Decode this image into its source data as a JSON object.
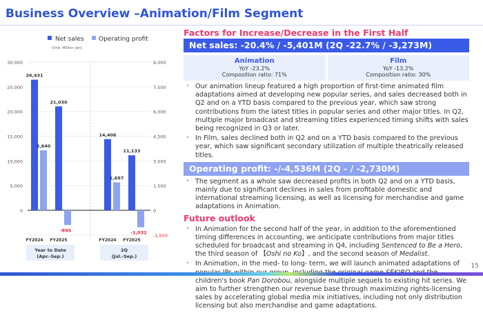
{
  "title": "Business Overview –Animation/Film Segment",
  "page_number": "15",
  "chart_data": {
    "type": "bar",
    "legend": [
      "Net sales",
      "Operating profit"
    ],
    "unit": "(Unit: Million yen)",
    "left_axis": {
      "ticks": [
        "30,000",
        "25,000",
        "20,000",
        "15,000",
        "10,000",
        "5,000",
        "0"
      ],
      "range": [
        -5000,
        30000
      ]
    },
    "right_axis": {
      "ticks": [
        "9,000",
        "7,500",
        "6,000",
        "4,500",
        "3,000",
        "1,500",
        "0",
        "-1,500"
      ],
      "range": [
        -1500,
        9000
      ]
    },
    "groups": [
      {
        "label1": "Year to Date",
        "label2": "(Apr.-Sep.)",
        "bars": [
          {
            "fy": "FY2024",
            "net_sales": 26431,
            "net_label": "26,431",
            "op": 3640,
            "op_label": "3,640"
          },
          {
            "fy": "FY2025",
            "net_sales": 21030,
            "net_label": "21,030",
            "op": -895,
            "op_label": "-895"
          }
        ]
      },
      {
        "label1": "2Q",
        "label2": "(Jul.-Sep.)",
        "bars": [
          {
            "fy": "FY2024",
            "net_sales": 14406,
            "net_label": "14,406",
            "op": 1697,
            "op_label": "1,697"
          },
          {
            "fy": "FY2025",
            "net_sales": 11133,
            "net_label": "11,133",
            "op": -1032,
            "op_label": "-1,032"
          }
        ]
      }
    ],
    "colors": {
      "net_sales": "#3a5ae8",
      "op": "#8fa3f0",
      "negative": "#ee2233"
    }
  },
  "factors": {
    "heading": "Factors for Increase/Decrease in the First Half",
    "net_sales_bar": "Net sales: -20.4% / -5,401M (2Q -22.7% / -3,273M)",
    "animation": {
      "title": "Animation",
      "yoy": "YoY -23.2%",
      "ratio": "Composition ratio: 71%"
    },
    "film": {
      "title": "Film",
      "yoy": "YoY -13.2%",
      "ratio": "Composition ratio: 30%"
    },
    "net_bullets": [
      "Our animation lineup featured a high proportion of first-time animated film adaptations aimed at developing new popular series, and sales decreased both in Q2 and on a YTD basis compared to the previous year, which saw strong contributions from the latest titles in popular series and other major titles. In Q2, multiple major broadcast and streaming titles experienced timing shifts with sales being recognized in Q3 or later.",
      "In Film, sales declined both in Q2 and on a YTD basis compared to the previous year, which saw significant secondary utilization of multiple theatrically released titles."
    ],
    "op_bar": "Operating profit: -/-4,536M (2Q - / -2,730M)",
    "op_bullets": [
      "The segment as a whole saw decreased profits in both Q2 and on a YTD basis, mainly due to significant declines in sales from profitable domestic and international streaming licensing, as well as licensing for merchandise and game adaptations in Animation."
    ]
  },
  "outlook": {
    "heading": "Future outlook",
    "b1": {
      "a": "In Animation for the second half of the year, in addition to the aforementioned timing differences in accounting, we anticipate contributions from major titles scheduled for broadcast and streaming in Q4, including ",
      "i1": "Sentenced to Be a Hero",
      "b": ", the third season of 【",
      "i2": "Oshi no Ko",
      "c": "】, and the second season of ",
      "i3": "Medalist",
      "d": "."
    },
    "b2": {
      "a": "In Animation, in the med- to long- term, we will launch animated adaptations of popular IPs within our group, including the original game ",
      "i1": "SEKIRO",
      "b": " and the children's book ",
      "i2": "Pan Dorobou",
      "c": ", alongside multiple sequels to existing hit series. We aim to further strengthen our revenue base through maximizing rights-licensing sales by accelerating global media mix initiatives, including not only distribution licensing but also merchandise and game adaptations."
    }
  }
}
